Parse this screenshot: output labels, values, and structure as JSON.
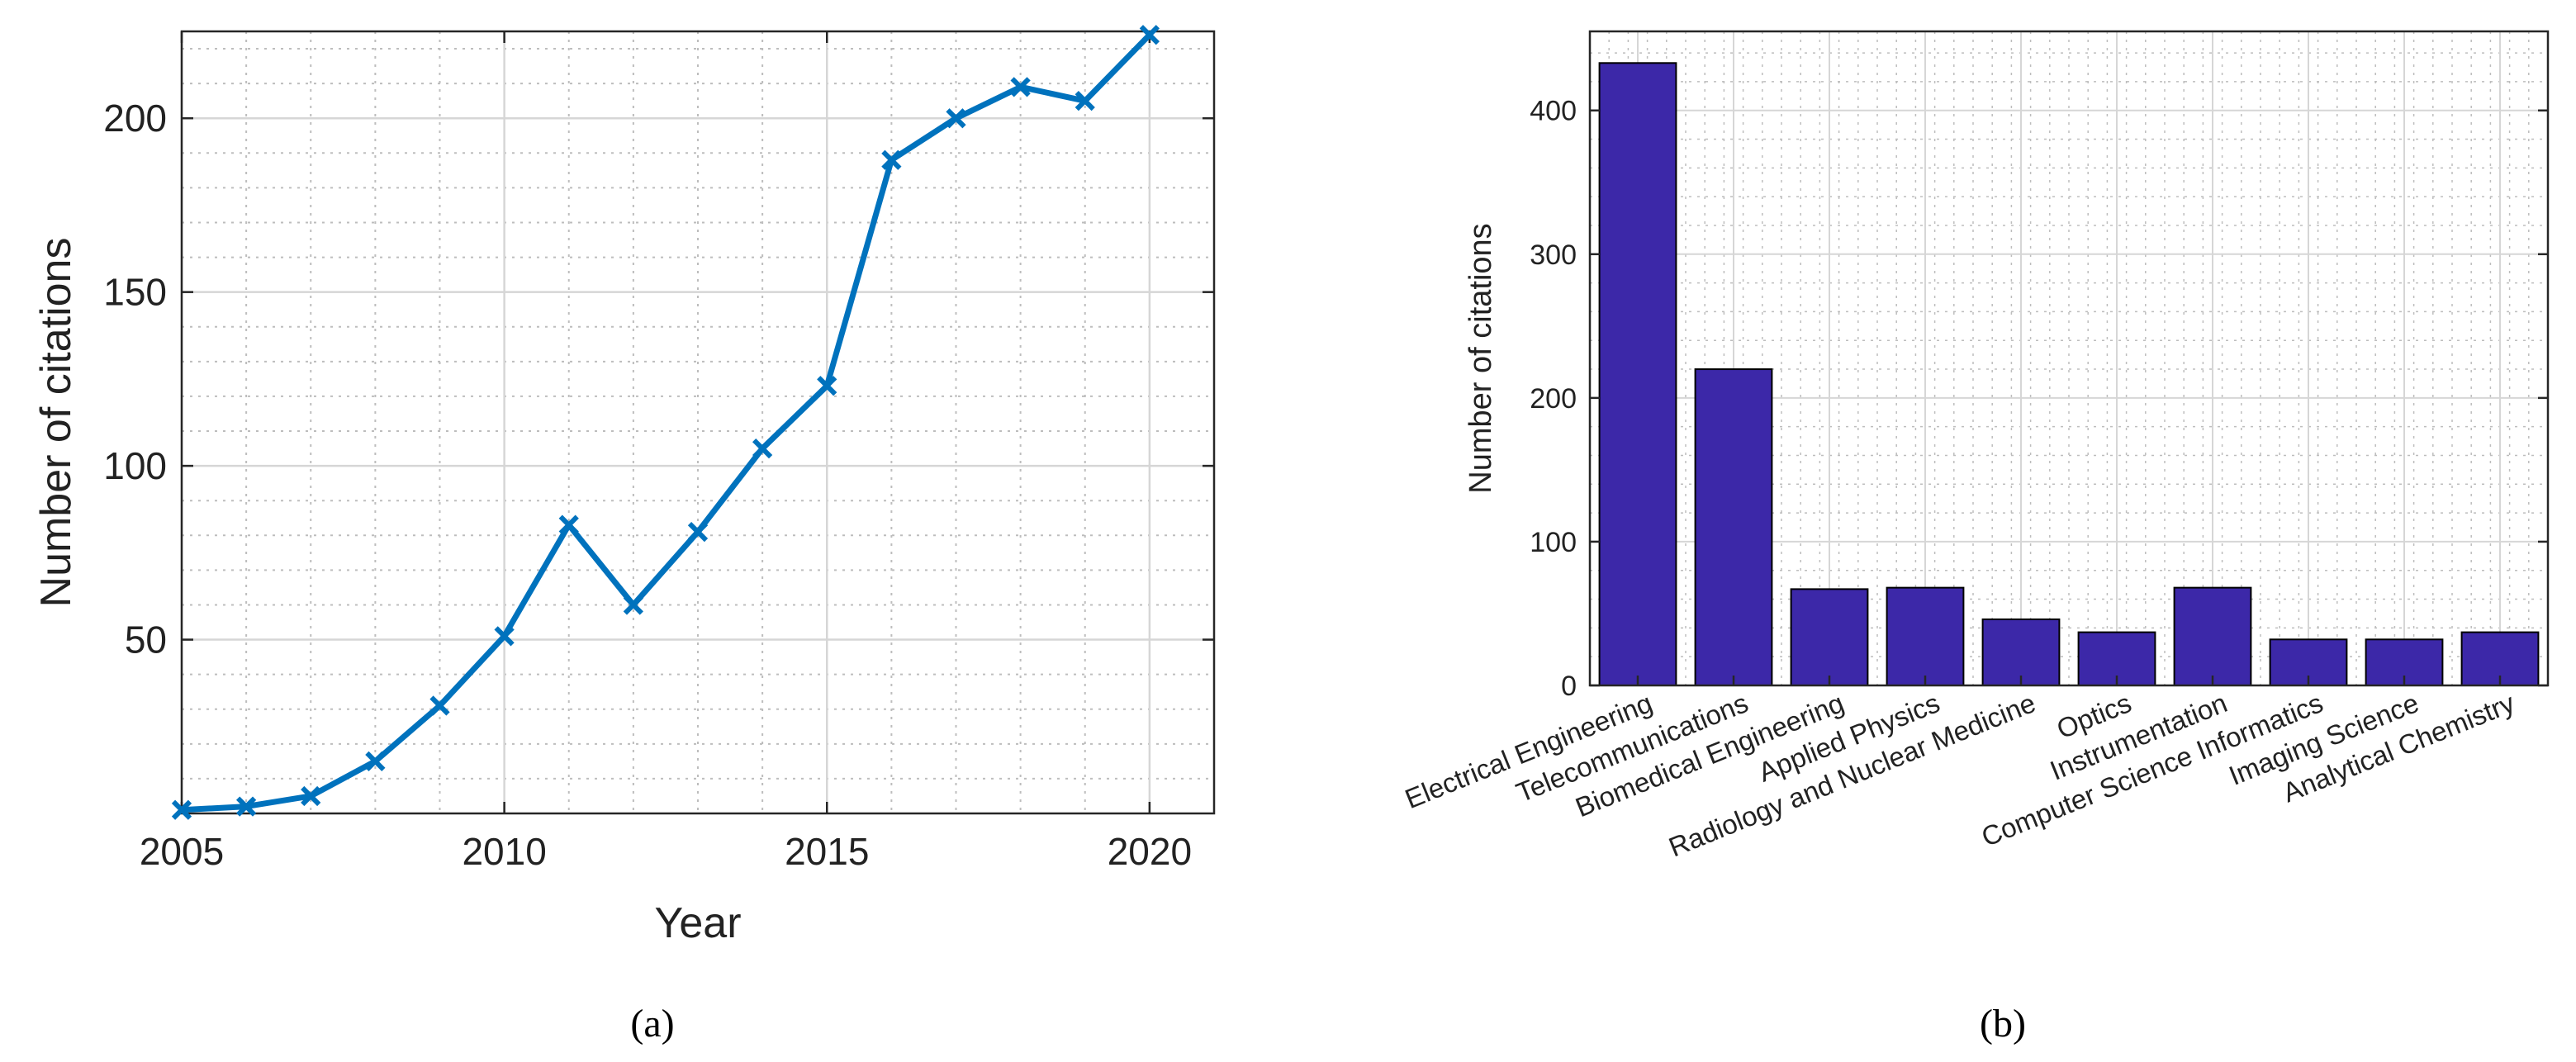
{
  "charts": {
    "a": {
      "caption": "(a)"
    },
    "b": {
      "caption": "(b)"
    }
  },
  "colors": {
    "line": "#0072bd",
    "bar": "#3c28a8",
    "grid_major": "#d6d6d6",
    "grid_minor": "#bdbdbd",
    "axis": "#262626"
  },
  "chart_data": [
    {
      "type": "line",
      "xlabel": "Year",
      "ylabel": "Number of citations",
      "xlim": [
        2005,
        2021
      ],
      "ylim": [
        0,
        225
      ],
      "xticks": [
        2005,
        2010,
        2015,
        2020
      ],
      "yticks": [
        50,
        100,
        150,
        200
      ],
      "grid": true,
      "marker": "x",
      "x": [
        2005,
        2006,
        2007,
        2008,
        2009,
        2010,
        2011,
        2012,
        2013,
        2014,
        2015,
        2016,
        2017,
        2018,
        2019,
        2020
      ],
      "y": [
        1,
        2,
        5,
        15,
        31,
        51,
        83,
        60,
        81,
        105,
        123,
        188,
        200,
        209,
        205,
        224
      ]
    },
    {
      "type": "bar",
      "ylabel": "Number of citations",
      "ylim": [
        0,
        455
      ],
      "yticks": [
        0,
        100,
        200,
        300,
        400
      ],
      "grid": true,
      "categories": [
        "Electrical Engineering",
        "Telecommunications",
        "Biomedical Engineering",
        "Applied Physics",
        "Radiology and Nuclear Medicine",
        "Optics",
        "Instrumentation",
        "Computer Science Informatics",
        "Imaging Science",
        "Analytical Chemistry"
      ],
      "values": [
        433,
        220,
        67,
        68,
        46,
        37,
        68,
        32,
        32,
        37
      ]
    }
  ]
}
